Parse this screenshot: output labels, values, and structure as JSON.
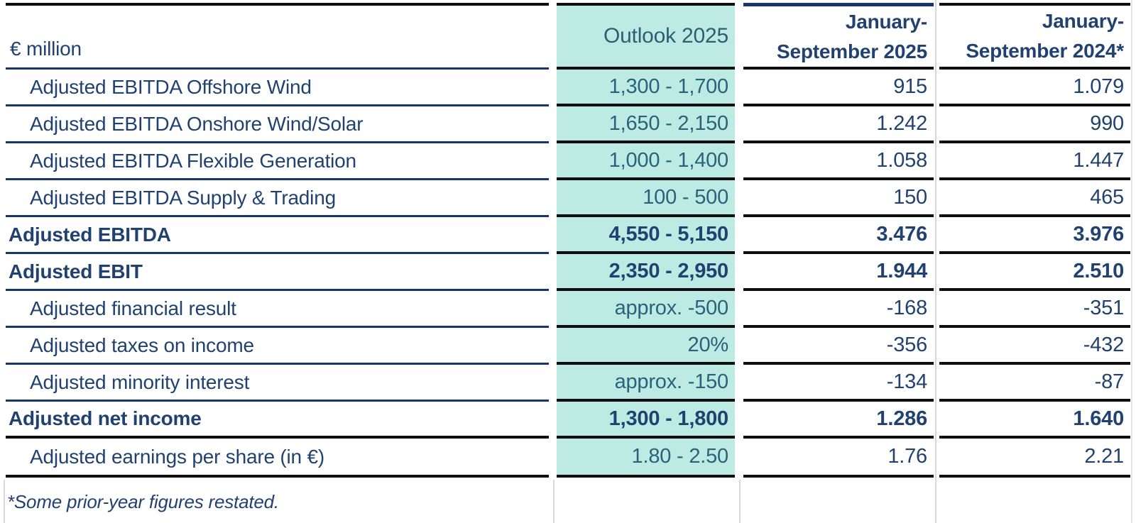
{
  "table": {
    "unit_label": "€ million",
    "columns": {
      "outlook": "Outlook 2025",
      "current": {
        "line1": "January-",
        "line2": "September 2025"
      },
      "prior": {
        "line1": "January-",
        "line2": "September 2024*"
      }
    },
    "rows": [
      {
        "label": "Adjusted EBITDA Offshore Wind",
        "outlook": "1,300 - 1,700",
        "current": "915",
        "prior": "1.079",
        "emphasis": false
      },
      {
        "label": "Adjusted EBITDA Onshore Wind/Solar",
        "outlook": "1,650 - 2,150",
        "current": "1.242",
        "prior": "990",
        "emphasis": false
      },
      {
        "label": "Adjusted EBITDA Flexible Generation",
        "outlook": "1,000 - 1,400",
        "current": "1.058",
        "prior": "1.447",
        "emphasis": false
      },
      {
        "label": "Adjusted EBITDA Supply & Trading",
        "outlook": "100 - 500",
        "current": "150",
        "prior": "465",
        "emphasis": false
      },
      {
        "label": "Adjusted EBITDA",
        "outlook": "4,550 - 5,150",
        "current": "3.476",
        "prior": "3.976",
        "emphasis": true
      },
      {
        "label": "Adjusted EBIT",
        "outlook": "2,350 - 2,950",
        "current": "1.944",
        "prior": "2.510",
        "emphasis": true
      },
      {
        "label": "Adjusted financial result",
        "outlook": "approx. -500",
        "current": "-168",
        "prior": "-351",
        "emphasis": false
      },
      {
        "label": "Adjusted taxes on income",
        "outlook": "20%",
        "current": "-356",
        "prior": "-432",
        "emphasis": false
      },
      {
        "label": "Adjusted minority interest",
        "outlook": "approx. -150",
        "current": "-134",
        "prior": "-87",
        "emphasis": false
      },
      {
        "label": "Adjusted net income",
        "outlook": "1,300 - 1,800",
        "current": "1.286",
        "prior": "1.640",
        "emphasis": true
      },
      {
        "label": "Adjusted earnings per share (in €)",
        "outlook": "1.80 - 2.50",
        "current": "1.76",
        "prior": "2.21",
        "emphasis": false
      }
    ],
    "footnote": "*Some prior-year figures restated."
  },
  "colors": {
    "mint": "#bdebe3",
    "navy_text": "#214271",
    "teal_text": "#2a627b",
    "outlook_header_text": "#2f5d74",
    "line_black": "#0e0e0e",
    "line_navy": "#16356a",
    "separator_gray": "#d9d9d9",
    "page_bg": "#ffffff"
  }
}
